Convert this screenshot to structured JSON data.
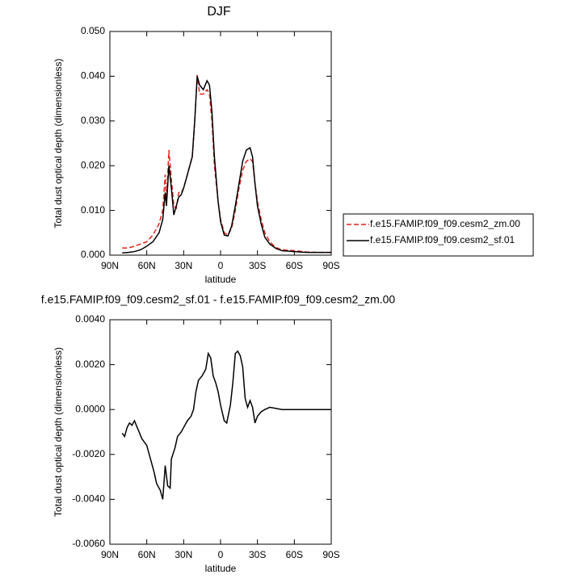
{
  "chart_data": [
    {
      "type": "line",
      "title": "DJF",
      "xlabel": "latitude",
      "ylabel": "Total dust optical depth (dimensionless)",
      "xlim": [
        90,
        -90
      ],
      "xticks": [
        {
          "value": 90,
          "label": "90N"
        },
        {
          "value": 60,
          "label": "60N"
        },
        {
          "value": 30,
          "label": "30N"
        },
        0,
        {
          "value": -30,
          "label": "30S"
        },
        {
          "value": -60,
          "label": "60S"
        },
        {
          "value": -90,
          "label": "90S"
        }
      ],
      "ylim": [
        0,
        0.05
      ],
      "yticks": [
        {
          "value": 0,
          "label": "0.000"
        },
        {
          "value": 0.01,
          "label": "0.010"
        },
        {
          "value": 0.02,
          "label": "0.020"
        },
        {
          "value": 0.03,
          "label": "0.030"
        },
        {
          "value": 0.04,
          "label": "0.040"
        },
        {
          "value": 0.05,
          "label": "0.050"
        }
      ],
      "legend": "outside right",
      "x": [
        80,
        75,
        70,
        65,
        60,
        55,
        50,
        47,
        45,
        44,
        42,
        40,
        38,
        36,
        34,
        32,
        30,
        27,
        25,
        23,
        21,
        19,
        17,
        14,
        11,
        9,
        7,
        5,
        2,
        0,
        -3,
        -6,
        -9,
        -12,
        -15,
        -18,
        -21,
        -24,
        -26,
        -28,
        -30,
        -33,
        -36,
        -40,
        -45,
        -50,
        -60,
        -70,
        -80,
        -90
      ],
      "series": [
        {
          "name": "f.e15.FAMIP.f09_f09.cesm2_zm.00",
          "color": "#e0241b",
          "linestyle": "dashed",
          "values": [
            0.0016,
            0.0016,
            0.002,
            0.0025,
            0.003,
            0.0045,
            0.007,
            0.01,
            0.018,
            0.012,
            0.0235,
            0.017,
            0.011,
            0.0105,
            0.014,
            0.014,
            0.015,
            0.018,
            0.02,
            0.022,
            0.03,
            0.0403,
            0.036,
            0.036,
            0.037,
            0.036,
            0.03,
            0.02,
            0.012,
            0.008,
            0.005,
            0.0045,
            0.006,
            0.01,
            0.015,
            0.019,
            0.021,
            0.0215,
            0.021,
            0.016,
            0.012,
            0.008,
            0.005,
            0.003,
            0.0017,
            0.0012,
            0.001,
            0.0007,
            0.0006,
            0.0006
          ]
        },
        {
          "name": "f.e15.FAMIP.f09_f09.cesm2_sf.01",
          "color": "#000000",
          "linestyle": "solid",
          "values": [
            0.0005,
            0.0006,
            0.0008,
            0.0012,
            0.002,
            0.003,
            0.005,
            0.008,
            0.014,
            0.011,
            0.02,
            0.015,
            0.009,
            0.011,
            0.013,
            0.0135,
            0.015,
            0.018,
            0.02,
            0.022,
            0.03,
            0.04,
            0.038,
            0.037,
            0.039,
            0.038,
            0.032,
            0.022,
            0.012,
            0.0075,
            0.0045,
            0.0043,
            0.0065,
            0.011,
            0.016,
            0.021,
            0.0235,
            0.024,
            0.022,
            0.016,
            0.011,
            0.007,
            0.004,
            0.0025,
            0.0015,
            0.001,
            0.0008,
            0.0006,
            0.0006,
            0.0006
          ]
        }
      ]
    },
    {
      "type": "line",
      "title": "f.e15.FAMIP.f09_f09.cesm2_sf.01 - f.e15.FAMIP.f09_f09.cesm2_zm.00",
      "xlabel": "latitude",
      "ylabel": "Total dust optical depth (dimensionless)",
      "xlim": [
        90,
        -90
      ],
      "xticks": [
        {
          "value": 90,
          "label": "90N"
        },
        {
          "value": 60,
          "label": "60N"
        },
        {
          "value": 30,
          "label": "30N"
        },
        0,
        {
          "value": -30,
          "label": "30S"
        },
        {
          "value": -60,
          "label": "60S"
        },
        {
          "value": -90,
          "label": "90S"
        }
      ],
      "ylim": [
        -0.006,
        0.004
      ],
      "yticks": [
        {
          "value": -0.006,
          "label": "-0.0060"
        },
        {
          "value": -0.004,
          "label": "-0.0040"
        },
        {
          "value": -0.002,
          "label": "-0.0020"
        },
        {
          "value": 0,
          "label": "0.0000"
        },
        {
          "value": 0.002,
          "label": "0.0020"
        },
        {
          "value": 0.004,
          "label": "0.0040"
        }
      ],
      "x": [
        80,
        78,
        76,
        74,
        72,
        70,
        67,
        64,
        60,
        57,
        54,
        52,
        49,
        47,
        45,
        43,
        41,
        40,
        37,
        35,
        32,
        30,
        27,
        24,
        22,
        20,
        18,
        15,
        12,
        10,
        8,
        6,
        4,
        2,
        0,
        -3,
        -5,
        -8,
        -10,
        -12,
        -14,
        -16,
        -18,
        -20,
        -22,
        -24,
        -26,
        -28,
        -30,
        -33,
        -36,
        -40,
        -50,
        -60,
        -70,
        -80,
        -90
      ],
      "series": [
        {
          "color": "#000000",
          "linestyle": "solid",
          "values": [
            -0.00105,
            -0.0012,
            -0.0008,
            -0.0006,
            -0.0007,
            -0.0005,
            -0.0009,
            -0.0013,
            -0.0016,
            -0.0022,
            -0.0028,
            -0.0033,
            -0.0036,
            -0.004,
            -0.0025,
            -0.0034,
            -0.0035,
            -0.0022,
            -0.0017,
            -0.0012,
            -0.001,
            -0.0008,
            -0.0005,
            -0.0003,
            0,
            0.0008,
            0.0013,
            0.0015,
            0.0018,
            0.0025,
            0.0023,
            0.0015,
            0.0012,
            0.0008,
            0.0002,
            -0.0005,
            -0.0006,
            0.0002,
            0.0012,
            0.0025,
            0.0026,
            0.0024,
            0.0019,
            0.0005,
            0.0001,
            0.0004,
            0.0001,
            -0.0006,
            -0.0003,
            -0.0001,
            0,
            0.0001,
            0,
            0,
            0,
            0,
            0
          ]
        }
      ]
    }
  ]
}
